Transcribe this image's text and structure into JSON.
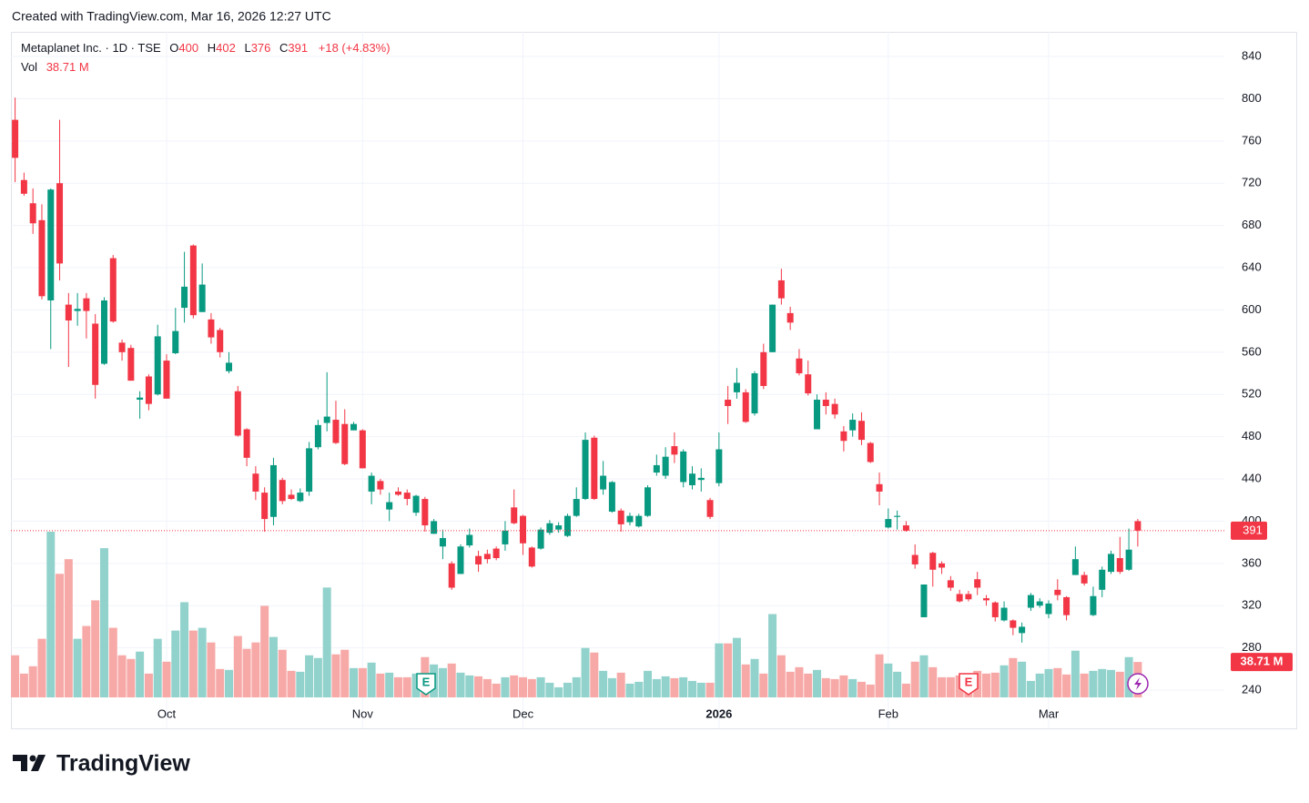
{
  "header": {
    "created": "Created with TradingView.com, Mar 16, 2026 12:27 UTC"
  },
  "footer": {
    "brand": "TradingView"
  },
  "chart_data": {
    "type": "candlestick",
    "title": "Metaplanet Inc. · 1D · TSE",
    "legend_labels": {
      "open": "O",
      "high": "H",
      "low": "L",
      "close": "C",
      "volume": "Vol"
    },
    "change": "+18 (+4.83%)",
    "volume_label": "38.71 M",
    "event_labels": [
      "E",
      "E"
    ],
    "up_color": "#089981",
    "down_color": "#f23645",
    "volume_up_color": "#92d2cc",
    "volume_down_color": "#f7a9a7",
    "grid": true,
    "ylim": [
      203.8,
      863.3
    ],
    "yticks": [
      240,
      280,
      320,
      360,
      400,
      440,
      480,
      520,
      560,
      600,
      640,
      680,
      720,
      760,
      800,
      840
    ],
    "categories": [
      null,
      null,
      null,
      null,
      null,
      null,
      null,
      null,
      null,
      null,
      null,
      null,
      null,
      null,
      null,
      null,
      null,
      "Oct",
      null,
      null,
      null,
      null,
      null,
      null,
      null,
      null,
      null,
      null,
      null,
      null,
      null,
      null,
      null,
      null,
      null,
      null,
      null,
      null,
      null,
      "Nov",
      null,
      null,
      null,
      null,
      null,
      null,
      null,
      null,
      null,
      null,
      null,
      null,
      null,
      null,
      null,
      null,
      null,
      "Dec",
      null,
      null,
      null,
      null,
      null,
      null,
      null,
      null,
      null,
      null,
      null,
      null,
      null,
      null,
      null,
      null,
      null,
      null,
      null,
      null,
      null,
      "2026",
      null,
      null,
      null,
      null,
      null,
      null,
      null,
      null,
      null,
      null,
      null,
      null,
      null,
      null,
      null,
      null,
      null,
      null,
      "Feb",
      null,
      null,
      null,
      null,
      null,
      null,
      null,
      null,
      null,
      null,
      null,
      null,
      null,
      null,
      null,
      null,
      null,
      "Mar",
      null,
      null,
      null,
      null,
      null,
      null,
      null,
      null,
      null,
      null
    ],
    "open": [
      780,
      723,
      701,
      685,
      609,
      720,
      605,
      599,
      611,
      587,
      549,
      649,
      569,
      564,
      515,
      537,
      520,
      552,
      559,
      602,
      661,
      598,
      591,
      581,
      542,
      523,
      487,
      445,
      427,
      404,
      439,
      425,
      419,
      428,
      470,
      493,
      496,
      492,
      486,
      486,
      428,
      438,
      411,
      428,
      427,
      408,
      421,
      388,
      376,
      360,
      350,
      377,
      367,
      369,
      374,
      378,
      413,
      405,
      375,
      374,
      389,
      392,
      386,
      405,
      421,
      479,
      430,
      409,
      410,
      399,
      395,
      405,
      446,
      443,
      471,
      437,
      434,
      439,
      420,
      436,
      515,
      522,
      522,
      502,
      560,
      560,
      628,
      597,
      554,
      539,
      487,
      515,
      511,
      485,
      486,
      495,
      474,
      435,
      394,
      404,
      396,
      368,
      309,
      370,
      360,
      344,
      331,
      331,
      345,
      327,
      323,
      306,
      306,
      294,
      318,
      320,
      312,
      335,
      328,
      349,
      349,
      311,
      335,
      352,
      365,
      354,
      400
    ],
    "high": [
      801,
      730,
      715,
      700,
      715,
      780,
      616,
      616,
      616,
      596,
      612,
      652,
      572,
      567,
      523,
      539,
      586,
      558,
      602,
      655,
      662,
      644,
      597,
      583,
      560,
      528,
      488,
      452,
      432,
      460,
      441,
      430,
      431,
      475,
      496,
      541,
      514,
      506,
      494,
      487,
      446,
      440,
      427,
      432,
      430,
      425,
      423,
      402,
      392,
      362,
      378,
      393,
      372,
      373,
      376,
      400,
      430,
      406,
      376,
      394,
      401,
      399,
      407,
      432,
      484,
      481,
      457,
      438,
      412,
      408,
      407,
      434,
      463,
      470,
      484,
      468,
      452,
      450,
      422,
      484,
      528,
      545,
      525,
      542,
      568,
      605,
      639,
      603,
      563,
      552,
      520,
      522,
      516,
      490,
      502,
      503,
      475,
      446,
      412,
      410,
      400,
      378,
      340,
      371,
      362,
      348,
      335,
      334,
      352,
      330,
      324,
      324,
      307,
      304,
      332,
      327,
      325,
      345,
      329,
      376,
      352,
      338,
      357,
      372,
      385,
      393,
      402
    ],
    "low": [
      721,
      708,
      672,
      610,
      563,
      628,
      546,
      585,
      573,
      516,
      548,
      588,
      552,
      533,
      497,
      505,
      519,
      516,
      558,
      588,
      592,
      598,
      568,
      555,
      540,
      480,
      452,
      420,
      390,
      396,
      416,
      420,
      418,
      424,
      468,
      485,
      473,
      453,
      486,
      450,
      416,
      425,
      400,
      424,
      415,
      405,
      390,
      388,
      364,
      335,
      350,
      375,
      352,
      360,
      363,
      372,
      397,
      368,
      356,
      373,
      387,
      389,
      385,
      404,
      420,
      420,
      425,
      408,
      390,
      396,
      394,
      404,
      443,
      440,
      455,
      432,
      430,
      428,
      402,
      433,
      492,
      516,
      493,
      500,
      525,
      560,
      605,
      581,
      538,
      519,
      487,
      501,
      497,
      466,
      480,
      472,
      455,
      415,
      393,
      392,
      390,
      355,
      309,
      338,
      350,
      334,
      323,
      324,
      330,
      320,
      305,
      305,
      292,
      285,
      315,
      318,
      308,
      325,
      306,
      349,
      339,
      310,
      328,
      350,
      350,
      353,
      376
    ],
    "close": [
      744,
      710,
      682,
      613,
      714,
      644,
      590,
      601,
      599,
      529,
      609,
      589,
      560,
      533,
      517,
      511,
      575,
      516,
      580,
      622,
      595,
      624,
      574,
      560,
      550,
      481,
      460,
      428,
      402,
      453,
      419,
      421,
      427,
      469,
      491,
      499,
      474,
      454,
      492,
      450,
      443,
      430,
      418,
      425,
      421,
      424,
      396,
      400,
      384,
      337,
      376,
      387,
      359,
      364,
      365,
      391,
      398,
      379,
      357,
      392,
      398,
      396,
      405,
      421,
      477,
      421,
      443,
      437,
      397,
      405,
      405,
      432,
      453,
      461,
      463,
      466,
      445,
      441,
      404,
      468,
      509,
      531,
      494,
      540,
      528,
      605,
      611,
      588,
      540,
      521,
      515,
      509,
      501,
      476,
      496,
      477,
      456,
      428,
      402,
      405,
      391,
      359,
      340,
      354,
      356,
      337,
      324,
      326,
      337,
      325,
      309,
      318,
      299,
      300,
      330,
      324,
      322,
      330,
      311,
      364,
      341,
      329,
      354,
      369,
      352,
      373,
      391
    ],
    "volume": [
      46,
      26,
      34,
      64,
      181,
      135,
      151,
      64,
      78,
      106,
      163,
      76,
      46,
      42,
      50,
      26,
      64,
      39,
      73,
      104,
      73,
      76,
      60,
      31,
      30,
      67,
      53,
      60,
      100,
      66,
      52,
      29,
      28,
      46,
      43,
      120,
      47,
      52,
      32,
      32,
      38,
      26,
      27,
      22,
      22,
      26,
      44,
      36,
      32,
      37,
      27,
      24,
      23,
      20,
      15,
      22,
      24,
      22,
      20,
      22,
      16,
      11,
      16,
      22,
      54,
      49,
      29,
      21,
      27,
      15,
      17,
      29,
      20,
      23,
      21,
      22,
      18,
      16,
      16,
      59,
      59,
      65,
      36,
      42,
      26,
      91,
      46,
      28,
      33,
      26,
      30,
      21,
      20,
      24,
      20,
      17,
      14,
      47,
      37,
      28,
      15,
      39,
      46,
      33,
      22,
      22,
      24,
      26,
      29,
      26,
      27,
      35,
      43,
      39,
      18,
      26,
      31,
      32,
      25,
      51,
      26,
      29,
      31,
      30,
      28,
      44,
      38.71
    ]
  }
}
